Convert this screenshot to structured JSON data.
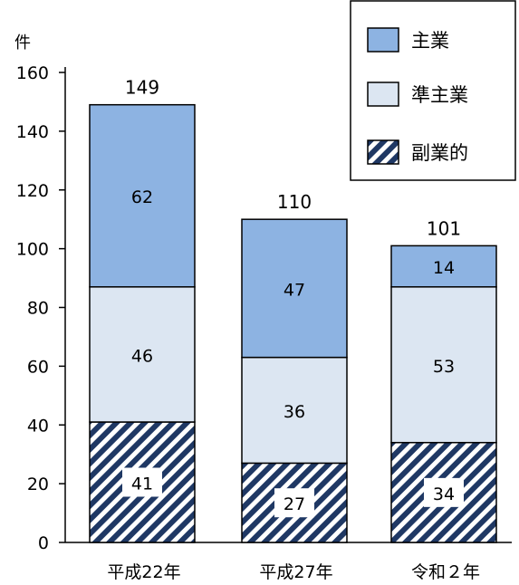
{
  "chart_data": {
    "type": "bar",
    "stacked": true,
    "ylabel": "件",
    "ylim": [
      0,
      160
    ],
    "yticks": [
      0,
      20,
      40,
      60,
      80,
      100,
      120,
      140,
      160
    ],
    "categories": [
      "平成22年",
      "平成27年",
      "令和２年"
    ],
    "series": [
      {
        "name": "副業的",
        "values": [
          41,
          27,
          34
        ],
        "color": "#1f3864",
        "pattern": "diagonal-hatch"
      },
      {
        "name": "準主業",
        "values": [
          46,
          36,
          53
        ],
        "color": "#dce6f2",
        "pattern": "solid"
      },
      {
        "name": "主業",
        "values": [
          62,
          47,
          14
        ],
        "color": "#8db3e2",
        "pattern": "solid"
      }
    ],
    "totals": [
      149,
      110,
      101
    ],
    "legend": {
      "position": "top-right",
      "order": [
        "主業",
        "準主業",
        "副業的"
      ]
    },
    "grid": false
  }
}
